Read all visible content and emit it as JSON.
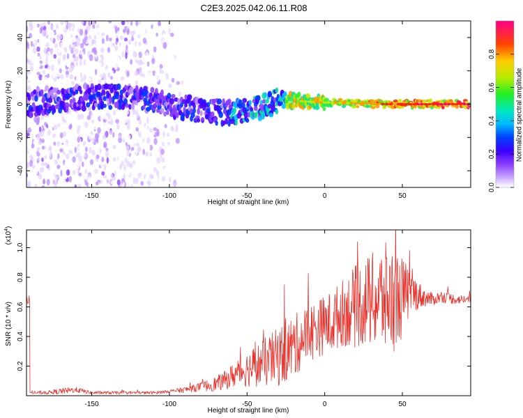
{
  "title": "C2E3.2025.042.06.11.R08",
  "colors": {
    "snr_line": "#e8322b",
    "spectrogram_palette": [
      "#ffffff",
      "#e6d4ff",
      "#b98cff",
      "#8a3cff",
      "#4a00ff",
      "#0033ff",
      "#00c0ff",
      "#00e0a0",
      "#33ee33",
      "#c8e800",
      "#ff9900",
      "#ff2200",
      "#ff0077"
    ]
  },
  "chart_data": [
    {
      "type": "heatmap",
      "xlabel": "Height of straight line (km)",
      "ylabel": "Frequency (Hz)",
      "xlim": [
        -192,
        94
      ],
      "ylim": [
        -50,
        50
      ],
      "xticks": [
        "-150",
        "-100",
        "-50",
        "0",
        "50"
      ],
      "xtick_values": [
        -150,
        -100,
        -50,
        0,
        50
      ],
      "yticks": [
        "-40",
        "-20",
        "0",
        "20",
        "40"
      ],
      "ytick_values": [
        -40,
        -20,
        0,
        20,
        40
      ],
      "grid": false,
      "colorbar": {
        "label": "Normalized spectral amplitude",
        "range": [
          0,
          1
        ],
        "ticks": [
          "0.0",
          "0.2",
          "0.4",
          "0.6",
          "0.8"
        ],
        "tick_values": [
          0,
          0.2,
          0.4,
          0.6,
          0.8
        ]
      },
      "features": {
        "scatter_region_x": [
          -192,
          -90
        ],
        "scatter_region_y": [
          -50,
          50
        ],
        "main_band_center": [
          {
            "x": -190,
            "y": 0
          },
          {
            "x": -160,
            "y": 4
          },
          {
            "x": -130,
            "y": 5
          },
          {
            "x": -100,
            "y": 0
          },
          {
            "x": -80,
            "y": -4
          },
          {
            "x": -60,
            "y": -5
          },
          {
            "x": -40,
            "y": -2
          },
          {
            "x": -28,
            "y": 3
          },
          {
            "x": -20,
            "y": 2
          },
          {
            "x": 0,
            "y": 1
          },
          {
            "x": 40,
            "y": 0
          },
          {
            "x": 94,
            "y": 0
          }
        ]
      }
    },
    {
      "type": "line",
      "xlabel": "Height of straight line (km)",
      "ylabel": "SNR (10 * v/v)",
      "y_multiplier": "(x10⁴)",
      "y_multiplier_base": "(x10",
      "y_multiplier_exp": "4",
      "y_multiplier_close": ")",
      "xlim": [
        -192,
        94
      ],
      "ylim": [
        0,
        1.12
      ],
      "xticks": [
        "-150",
        "-100",
        "-50",
        "0",
        "50"
      ],
      "xtick_values": [
        -150,
        -100,
        -50,
        0,
        50
      ],
      "yticks": [
        "0.2",
        "0.4",
        "0.6",
        "0.8",
        "1.0"
      ],
      "ytick_values": [
        0.2,
        0.4,
        0.6,
        0.8,
        1.0
      ],
      "grid": false,
      "series": [
        {
          "x": [
            -190,
            -180,
            -170,
            -160,
            -150,
            -140,
            -130,
            -120,
            -110,
            -100,
            -90,
            -80,
            -70,
            -65,
            -60,
            -55,
            -50,
            -45,
            -40,
            -35,
            -30,
            -25,
            -20,
            -15,
            -10,
            -5,
            0,
            5,
            10,
            15,
            20,
            25,
            30,
            35,
            40,
            45,
            50,
            55,
            60,
            65,
            70,
            75,
            80,
            85,
            90,
            94
          ],
          "values": [
            0.02,
            0.02,
            0.03,
            0.04,
            0.02,
            0.02,
            0.02,
            0.02,
            0.02,
            0.03,
            0.04,
            0.06,
            0.08,
            0.1,
            0.13,
            0.16,
            0.18,
            0.2,
            0.22,
            0.24,
            0.26,
            0.3,
            0.33,
            0.38,
            0.43,
            0.45,
            0.48,
            0.5,
            0.55,
            0.58,
            0.6,
            0.63,
            0.64,
            0.65,
            0.66,
            0.65,
            0.66,
            0.7,
            0.68,
            0.66,
            0.65,
            0.67,
            0.66,
            0.65,
            0.65,
            0.65
          ],
          "noise_amplitude": [
            0.01,
            0.01,
            0.02,
            0.02,
            0.01,
            0.01,
            0.01,
            0.01,
            0.01,
            0.01,
            0.02,
            0.03,
            0.05,
            0.06,
            0.08,
            0.1,
            0.12,
            0.14,
            0.16,
            0.18,
            0.2,
            0.22,
            0.22,
            0.2,
            0.2,
            0.2,
            0.2,
            0.22,
            0.22,
            0.25,
            0.28,
            0.3,
            0.32,
            0.35,
            0.38,
            0.35,
            0.28,
            0.15,
            0.1,
            0.06,
            0.04,
            0.04,
            0.04,
            0.03,
            0.03,
            0.03
          ]
        }
      ]
    }
  ]
}
